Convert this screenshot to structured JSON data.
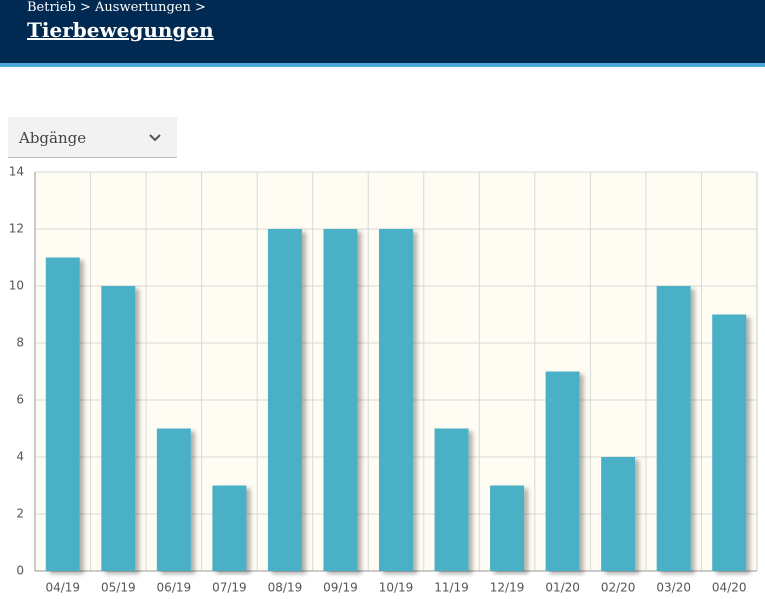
{
  "header": {
    "breadcrumb": "Betrieb > Auswertungen >",
    "title": "Tierbewegungen"
  },
  "dropdown": {
    "selected": "Abgänge"
  },
  "chart_data": {
    "type": "bar",
    "categories": [
      "04/19",
      "05/19",
      "06/19",
      "07/19",
      "08/19",
      "09/19",
      "10/19",
      "11/19",
      "12/19",
      "01/20",
      "02/20",
      "03/20",
      "04/20"
    ],
    "values": [
      11,
      10,
      5,
      3,
      12,
      12,
      12,
      5,
      3,
      7,
      4,
      10,
      9
    ],
    "color": "#4ab0c6",
    "ylim": [
      0,
      14
    ],
    "yticks": [
      0,
      2,
      4,
      6,
      8,
      10,
      12,
      14
    ],
    "grid": true
  }
}
